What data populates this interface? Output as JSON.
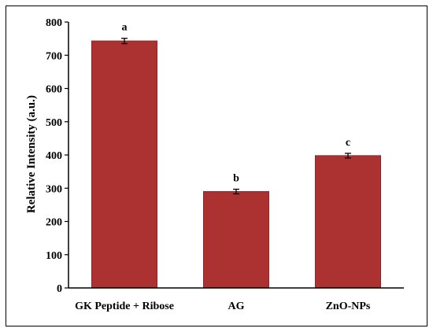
{
  "chart_data": {
    "type": "bar",
    "categories": [
      "GK Peptide + Ribose",
      "AG",
      "ZnO-NPs"
    ],
    "values": [
      743,
      290,
      398
    ],
    "errors": [
      8,
      7,
      7
    ],
    "significance_letters": [
      "a",
      "b",
      "c"
    ],
    "ylabel": "Relative Intensity (a.u.)",
    "ylim": [
      0,
      800
    ],
    "yticks": [
      0,
      100,
      200,
      300,
      400,
      500,
      600,
      700,
      800
    ],
    "grid": false,
    "legend": "none",
    "bar_color": "#ac3232",
    "bar_edge_color": "#8e2626"
  }
}
